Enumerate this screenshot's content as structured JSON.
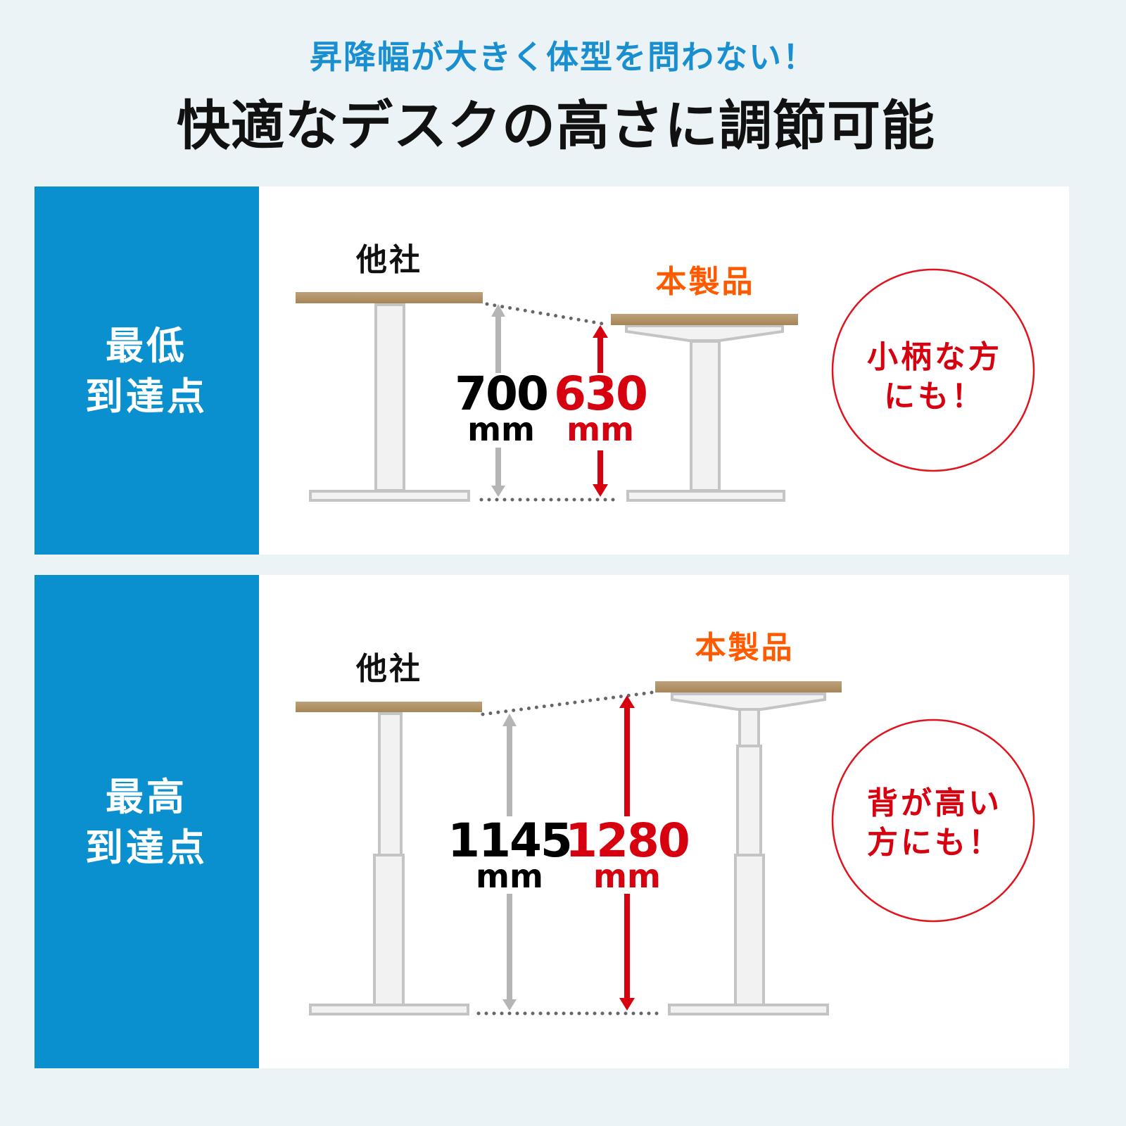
{
  "header": {
    "subtitle": "昇降幅が大きく体型を問わない！",
    "title": "快適なデスクの高さに調節可能"
  },
  "colors": {
    "accent_blue": "#0b90cf",
    "product_orange": "#ff5a00",
    "highlight_red": "#d7000f",
    "desk_top": "#b0946a",
    "background": "#ebf3f7"
  },
  "panels": [
    {
      "side_label_line1": "最低",
      "side_label_line2": "到達点",
      "competitor_label": "他社",
      "product_label": "本製品",
      "competitor_value": "700",
      "product_value": "630",
      "unit": "mm",
      "note_line1": "小柄な方",
      "note_line2": "にも！"
    },
    {
      "side_label_line1": "最高",
      "side_label_line2": "到達点",
      "competitor_label": "他社",
      "product_label": "本製品",
      "competitor_value": "1145",
      "product_value": "1280",
      "unit": "mm",
      "note_line1": "背が高い",
      "note_line2": "方にも！"
    }
  ]
}
